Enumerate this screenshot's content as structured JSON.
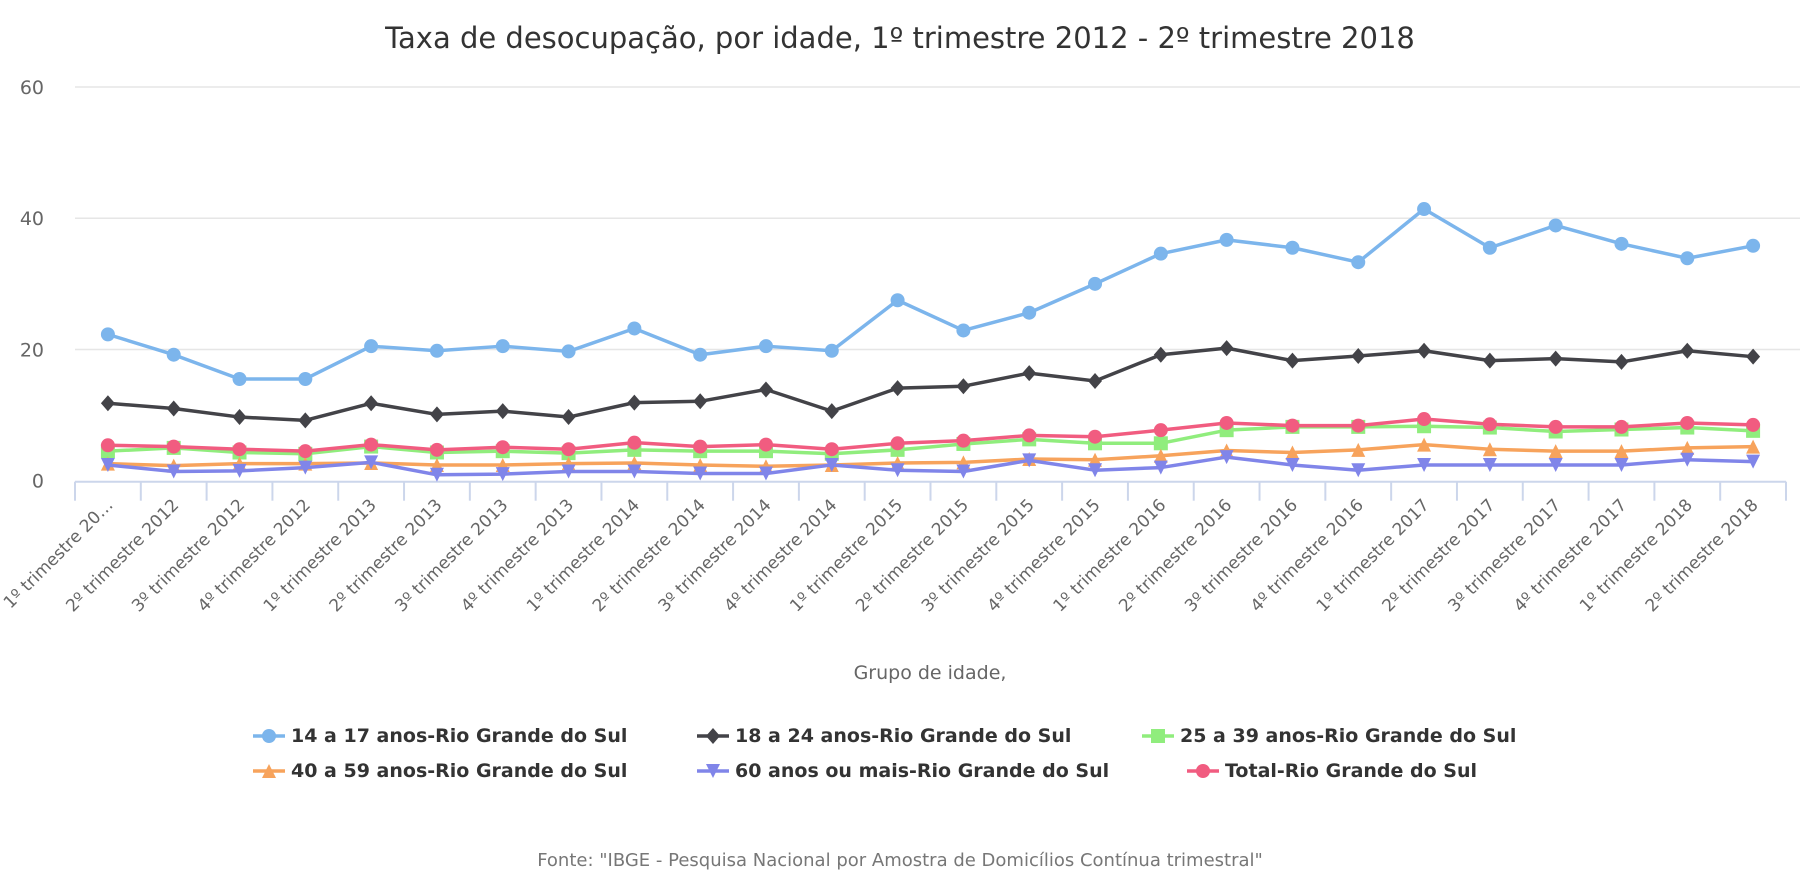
{
  "chart_data": {
    "type": "line",
    "title": "Taxa de desocupação, por idade, 1º trimestre 2012 - 2º trimestre 2018",
    "xlabel": "Grupo de idade,",
    "ylabel": "",
    "ylim": [
      0,
      60
    ],
    "yticks": [
      "0",
      "20",
      "40",
      "60"
    ],
    "grid": true,
    "legend_position": "bottom",
    "source": "Fonte: \"IBGE - Pesquisa Nacional por Amostra de Domicílios Contínua trimestral\"",
    "categories": [
      "1º trimestre 20…",
      "2º trimestre 2012",
      "3º trimestre 2012",
      "4º trimestre 2012",
      "1º trimestre 2013",
      "2º trimestre 2013",
      "3º trimestre 2013",
      "4º trimestre 2013",
      "1º trimestre 2014",
      "2º trimestre 2014",
      "3º trimestre 2014",
      "4º trimestre 2014",
      "1º trimestre 2015",
      "2º trimestre 2015",
      "3º trimestre 2015",
      "4º trimestre 2015",
      "1º trimestre 2016",
      "2º trimestre 2016",
      "3º trimestre 2016",
      "4º trimestre 2016",
      "1º trimestre 2017",
      "2º trimestre 2017",
      "3º trimestre 2017",
      "4º trimestre 2017",
      "1º trimestre 2018",
      "2º trimestre 2018"
    ],
    "series": [
      {
        "name": "14 a 17 anos-Rio Grande do Sul",
        "color": "#7cb5ec",
        "marker": "circle",
        "values": [
          22.3,
          19.2,
          15.5,
          15.5,
          20.5,
          19.8,
          20.5,
          19.7,
          23.2,
          19.2,
          20.5,
          19.8,
          27.5,
          22.9,
          25.6,
          30.0,
          34.6,
          36.7,
          35.5,
          33.3,
          41.4,
          35.5,
          38.9,
          36.1,
          33.9,
          35.8
        ]
      },
      {
        "name": "18 a 24 anos-Rio Grande do Sul",
        "color": "#434348",
        "marker": "diamond",
        "values": [
          11.8,
          11.0,
          9.7,
          9.2,
          11.8,
          10.1,
          10.6,
          9.7,
          11.9,
          12.1,
          13.9,
          10.6,
          14.1,
          14.4,
          16.4,
          15.2,
          19.2,
          20.2,
          18.3,
          19.0,
          19.8,
          18.3,
          18.6,
          18.1,
          19.8,
          18.9
        ]
      },
      {
        "name": "25 a 39 anos-Rio Grande do Sul",
        "color": "#90ed7d",
        "marker": "square",
        "values": [
          4.5,
          5.0,
          4.3,
          4.1,
          5.2,
          4.3,
          4.5,
          4.2,
          4.7,
          4.5,
          4.5,
          4.1,
          4.7,
          5.6,
          6.3,
          5.7,
          5.7,
          7.7,
          8.2,
          8.2,
          8.3,
          8.1,
          7.5,
          7.8,
          8.1,
          7.6
        ]
      },
      {
        "name": "40 a 59 anos-Rio Grande do Sul",
        "color": "#f7a35c",
        "marker": "triangle",
        "values": [
          2.6,
          2.3,
          2.6,
          2.6,
          2.7,
          2.4,
          2.4,
          2.6,
          2.7,
          2.4,
          2.2,
          2.4,
          2.7,
          2.8,
          3.3,
          3.2,
          3.8,
          4.6,
          4.3,
          4.7,
          5.5,
          4.8,
          4.5,
          4.5,
          5.0,
          5.2
        ]
      },
      {
        "name": "60 anos ou mais-Rio Grande do Sul",
        "color": "#8085e9",
        "marker": "triangle-down",
        "values": [
          2.4,
          1.4,
          1.5,
          2.0,
          2.8,
          0.9,
          1.0,
          1.4,
          1.4,
          1.1,
          1.1,
          2.4,
          1.6,
          1.4,
          3.1,
          1.6,
          2.0,
          3.6,
          2.4,
          1.6,
          2.4,
          2.4,
          2.4,
          2.4,
          3.2,
          2.9
        ]
      },
      {
        "name": "Total-Rio Grande do Sul",
        "color": "#f15c80",
        "marker": "circle",
        "values": [
          5.4,
          5.2,
          4.8,
          4.5,
          5.5,
          4.7,
          5.1,
          4.8,
          5.8,
          5.2,
          5.5,
          4.8,
          5.7,
          6.1,
          6.9,
          6.7,
          7.7,
          8.8,
          8.4,
          8.4,
          9.4,
          8.6,
          8.2,
          8.2,
          8.8,
          8.5
        ]
      }
    ]
  }
}
